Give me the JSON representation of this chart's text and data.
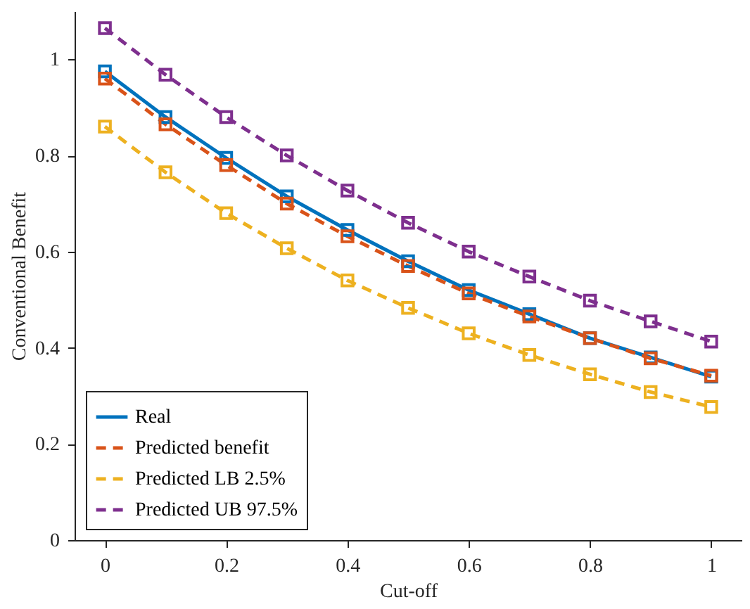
{
  "chart_data": {
    "type": "line",
    "xlabel": "Cut-off",
    "ylabel": "Conventional Benefit",
    "x": [
      0,
      0.1,
      0.2,
      0.3,
      0.4,
      0.5,
      0.6,
      0.7,
      0.8,
      0.9,
      1
    ],
    "xlim": [
      -0.05,
      1.05
    ],
    "xticks": [
      0,
      0.2,
      0.4,
      0.6,
      0.8,
      1
    ],
    "ylim": [
      0,
      1.1
    ],
    "yticks": [
      0,
      0.2,
      0.4,
      0.6,
      0.8,
      1
    ],
    "grid": false,
    "legend": "bottom left",
    "marker": "square",
    "series": [
      {
        "name": "Real",
        "color": "#0072bd",
        "line_style": "solid",
        "values": [
          0.975,
          0.88,
          0.795,
          0.715,
          0.645,
          0.58,
          0.52,
          0.47,
          0.42,
          0.38,
          0.34
        ]
      },
      {
        "name": "Predicted benefit",
        "color": "#d95319",
        "line_style": "dashed",
        "values": [
          0.96,
          0.865,
          0.78,
          0.7,
          0.632,
          0.57,
          0.513,
          0.465,
          0.42,
          0.378,
          0.342
        ]
      },
      {
        "name": "Predicted LB 2.5%",
        "color": "#edb120",
        "line_style": "dashed",
        "values": [
          0.86,
          0.765,
          0.68,
          0.607,
          0.54,
          0.483,
          0.43,
          0.385,
          0.345,
          0.308,
          0.277
        ]
      },
      {
        "name": "Predicted UB 97.5%",
        "color": "#7e2f8e",
        "line_style": "dashed",
        "values": [
          1.065,
          0.968,
          0.88,
          0.8,
          0.727,
          0.66,
          0.6,
          0.548,
          0.498,
          0.455,
          0.413
        ]
      }
    ]
  }
}
